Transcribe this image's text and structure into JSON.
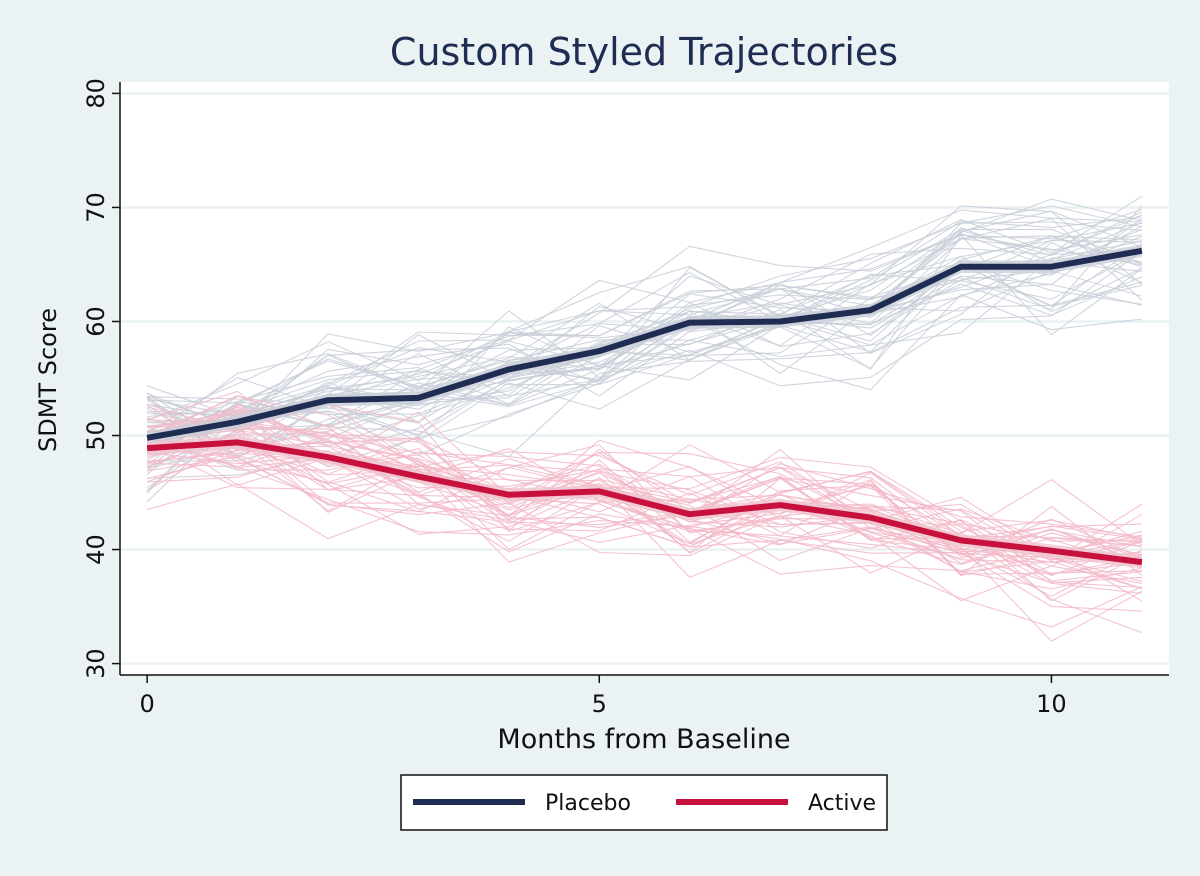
{
  "chart_data": {
    "type": "line",
    "title": "Custom Styled Trajectories",
    "xlabel": "Months from Baseline",
    "ylabel": "SDMT Score",
    "xlim": [
      -0.3,
      11.3
    ],
    "ylim": [
      29,
      81
    ],
    "x_ticks": [
      0,
      5,
      10
    ],
    "y_ticks": [
      30,
      40,
      50,
      60,
      70,
      80
    ],
    "x_tick_labels": [
      "0",
      "5",
      "10"
    ],
    "y_tick_labels": [
      "30",
      "40",
      "50",
      "60",
      "70",
      "80"
    ],
    "grid": "horizontal",
    "legend_position": "bottom-center",
    "x": [
      0,
      1,
      2,
      3,
      4,
      5,
      6,
      7,
      8,
      9,
      10,
      11
    ],
    "series": [
      {
        "name": "Placebo",
        "color": "#1f2d52",
        "band_color": "#c9ced8",
        "values": [
          49.8,
          51.2,
          53.1,
          53.3,
          55.8,
          57.4,
          59.9,
          60.0,
          61.0,
          64.8,
          64.8,
          66.2
        ]
      },
      {
        "name": "Active",
        "color": "#c8103c",
        "band_color": "#efc4d0",
        "values": [
          48.9,
          49.4,
          48.1,
          46.4,
          44.8,
          45.1,
          43.1,
          43.9,
          42.8,
          40.8,
          39.9,
          38.9
        ]
      }
    ],
    "individual_trajectories": {
      "count_per_group": 45,
      "placebo_color": "#c8ced8",
      "active_color": "#f2b8c8",
      "spread": 3.5
    }
  }
}
